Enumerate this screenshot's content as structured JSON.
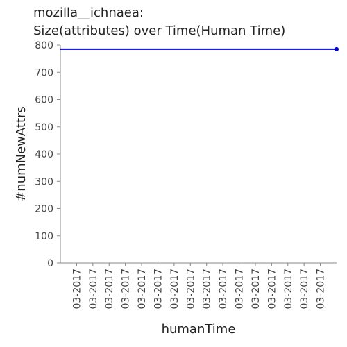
{
  "chart_data": {
    "type": "line",
    "title": [
      "mozilla__ichnaea:",
      "Size(attributes) over Time(Human Time)"
    ],
    "xlabel": "humanTime",
    "ylabel": "#numNewAttrs",
    "categories": [
      null,
      "03-2017",
      "03-2017",
      "03-2017",
      "03-2017",
      "03-2017",
      "03-2017",
      "03-2017",
      "03-2017",
      "03-2017",
      "03-2017",
      "03-2017",
      "03-2017",
      "03-2017",
      "03-2017",
      "03-2017",
      "03-2017",
      null
    ],
    "series": [
      {
        "name": "#numNewAttrs",
        "color": "#0000cc",
        "values": [
          785,
          785,
          785,
          785,
          785,
          785,
          785,
          785,
          785,
          785,
          785,
          785,
          785,
          785,
          785,
          785,
          785,
          785
        ]
      }
    ],
    "ylim": [
      0,
      800
    ],
    "yticks": [
      0,
      100,
      200,
      300,
      400,
      500,
      600,
      700,
      800
    ]
  }
}
